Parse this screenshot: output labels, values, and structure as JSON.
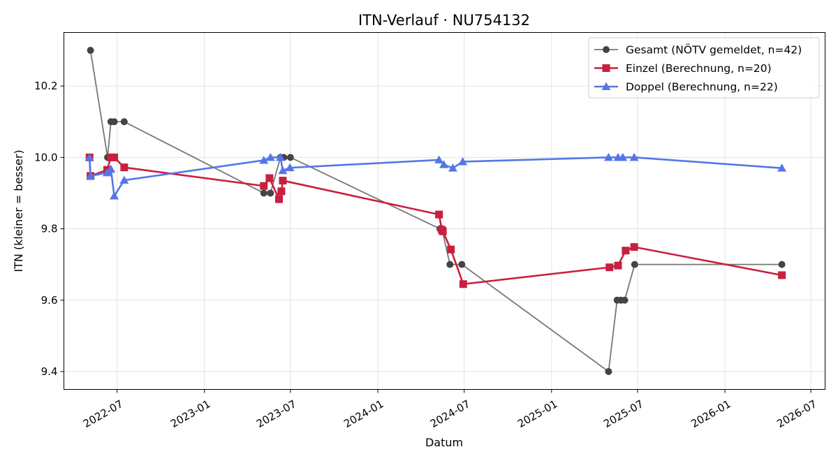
{
  "chart_data": {
    "type": "line",
    "title": "ITN-Verlauf · NU754132",
    "xlabel": "Datum",
    "ylabel": "ITN  (kleiner = besser)",
    "x_type": "date",
    "xlim": [
      "2022-03-11",
      "2026-07-31"
    ],
    "ylim": [
      9.35,
      10.35
    ],
    "x_ticks": [
      "2022-07-01",
      "2023-01-01",
      "2023-07-01",
      "2024-01-01",
      "2024-07-01",
      "2025-01-01",
      "2025-07-01",
      "2026-01-01",
      "2026-07-01"
    ],
    "x_tick_labels": [
      "2022-07",
      "2023-01",
      "2023-07",
      "2024-01",
      "2024-07",
      "2025-01",
      "2025-07",
      "2026-01",
      "2026-07"
    ],
    "y_ticks": [
      9.4,
      9.6,
      9.8,
      10.0,
      10.2
    ],
    "y_tick_labels": [
      "9.4",
      "9.6",
      "9.8",
      "10.0",
      "10.2"
    ],
    "grid": true,
    "legend_position": "top-right",
    "series": [
      {
        "name": "Gesamt (NÖTV gemeldet, n=42)",
        "color": "#777777",
        "marker_color": "#444444",
        "marker": "circle",
        "line_width": 1.8,
        "points": [
          {
            "x": "2022-05-06",
            "y": 10.3
          },
          {
            "x": "2022-06-11",
            "y": 10.0
          },
          {
            "x": "2022-06-18",
            "y": 10.1
          },
          {
            "x": "2022-06-25",
            "y": 10.1
          },
          {
            "x": "2022-07-16",
            "y": 10.1
          },
          {
            "x": "2023-05-06",
            "y": 9.9
          },
          {
            "x": "2023-05-20",
            "y": 9.9
          },
          {
            "x": "2023-06-10",
            "y": 10.0
          },
          {
            "x": "2023-06-17",
            "y": 10.0
          },
          {
            "x": "2023-07-01",
            "y": 10.0
          },
          {
            "x": "2024-05-11",
            "y": 9.8
          },
          {
            "x": "2024-05-15",
            "y": 9.8
          },
          {
            "x": "2024-06-01",
            "y": 9.7
          },
          {
            "x": "2024-06-26",
            "y": 9.7
          },
          {
            "x": "2025-05-01",
            "y": 9.4
          },
          {
            "x": "2025-05-19",
            "y": 9.6
          },
          {
            "x": "2025-05-27",
            "y": 9.6
          },
          {
            "x": "2025-06-04",
            "y": 9.6
          },
          {
            "x": "2025-06-25",
            "y": 9.7
          },
          {
            "x": "2026-05-01",
            "y": 9.7
          }
        ]
      },
      {
        "name": "Einzel (Berechnung, n=20)",
        "color": "#c8203f",
        "marker_color": "#c8203f",
        "marker": "square",
        "line_width": 2.6,
        "points": [
          {
            "x": "2022-05-04",
            "y": 10.0
          },
          {
            "x": "2022-05-06",
            "y": 9.948
          },
          {
            "x": "2022-06-10",
            "y": 9.965
          },
          {
            "x": "2022-06-18",
            "y": 10.0
          },
          {
            "x": "2022-06-25",
            "y": 10.0
          },
          {
            "x": "2022-07-16",
            "y": 9.972
          },
          {
            "x": "2023-05-06",
            "y": 9.92
          },
          {
            "x": "2023-05-18",
            "y": 9.942
          },
          {
            "x": "2023-06-07",
            "y": 9.883
          },
          {
            "x": "2023-06-12",
            "y": 9.905
          },
          {
            "x": "2023-06-15",
            "y": 9.935
          },
          {
            "x": "2024-05-09",
            "y": 9.84
          },
          {
            "x": "2024-05-15",
            "y": 9.797
          },
          {
            "x": "2024-05-17",
            "y": 9.793
          },
          {
            "x": "2024-06-03",
            "y": 9.742
          },
          {
            "x": "2024-06-29",
            "y": 9.645
          },
          {
            "x": "2025-05-03",
            "y": 9.692
          },
          {
            "x": "2025-05-21",
            "y": 9.697
          },
          {
            "x": "2025-06-06",
            "y": 9.739
          },
          {
            "x": "2025-06-24",
            "y": 9.749
          },
          {
            "x": "2026-05-01",
            "y": 9.67
          }
        ]
      },
      {
        "name": "Doppel (Berechnung, n=22)",
        "color": "#5577e6",
        "marker_color": "#5577e6",
        "marker": "triangle",
        "line_width": 2.6,
        "points": [
          {
            "x": "2022-05-04",
            "y": 10.0
          },
          {
            "x": "2022-05-06",
            "y": 9.948
          },
          {
            "x": "2022-06-10",
            "y": 9.957
          },
          {
            "x": "2022-06-18",
            "y": 9.967
          },
          {
            "x": "2022-06-25",
            "y": 9.892
          },
          {
            "x": "2022-07-16",
            "y": 9.936
          },
          {
            "x": "2023-05-06",
            "y": 9.992
          },
          {
            "x": "2023-05-20",
            "y": 10.0
          },
          {
            "x": "2023-06-10",
            "y": 10.0
          },
          {
            "x": "2023-06-15",
            "y": 9.963
          },
          {
            "x": "2023-06-30",
            "y": 9.971
          },
          {
            "x": "2024-05-09",
            "y": 9.993
          },
          {
            "x": "2024-05-19",
            "y": 9.98
          },
          {
            "x": "2024-06-07",
            "y": 9.97
          },
          {
            "x": "2024-06-28",
            "y": 9.988
          },
          {
            "x": "2025-05-01",
            "y": 10.0
          },
          {
            "x": "2025-05-21",
            "y": 10.0
          },
          {
            "x": "2025-05-31",
            "y": 10.0
          },
          {
            "x": "2025-06-24",
            "y": 10.0
          },
          {
            "x": "2026-05-01",
            "y": 9.97
          }
        ]
      }
    ]
  }
}
